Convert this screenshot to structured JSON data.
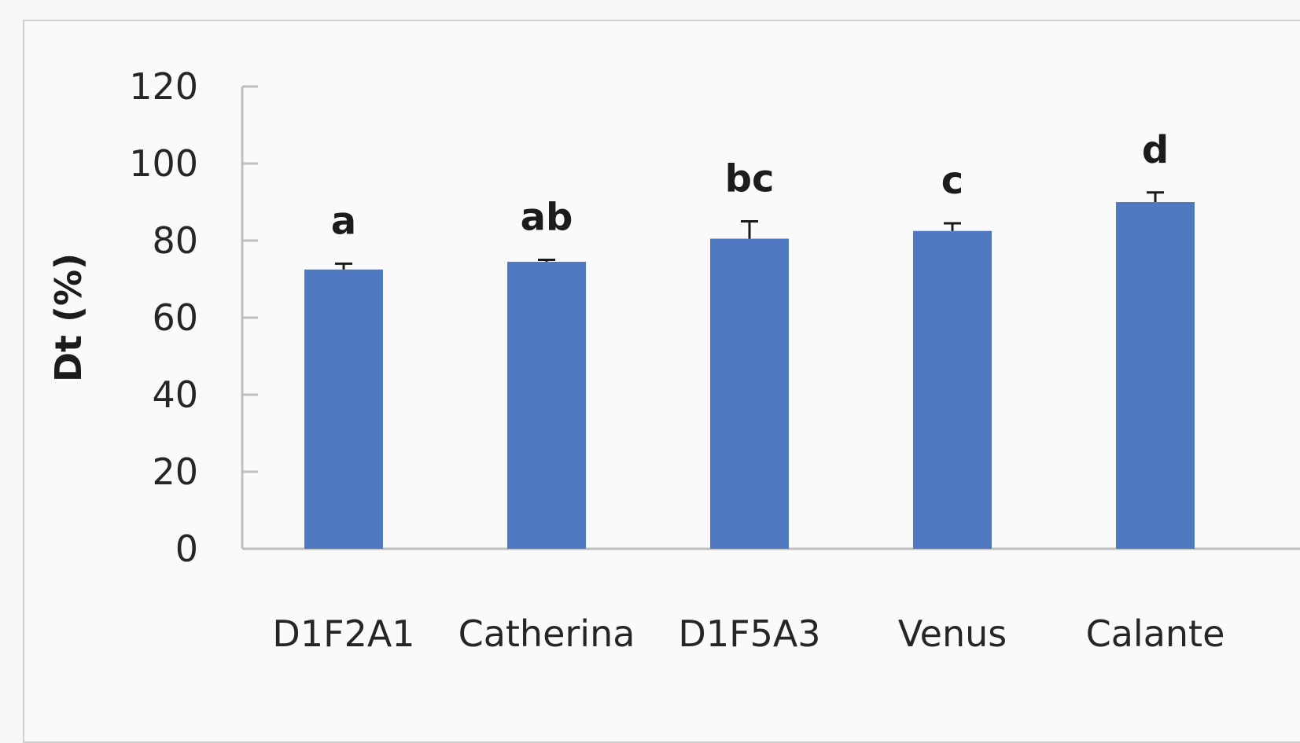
{
  "chart_data": {
    "type": "bar",
    "title": "",
    "xlabel": "",
    "ylabel": "Dt (%)",
    "ylim": [
      0,
      120
    ],
    "yticks": [
      0,
      20,
      40,
      60,
      80,
      100,
      120
    ],
    "categories": [
      "D1F2A1",
      "Catherina",
      "D1F5A3",
      "Venus",
      "Calante"
    ],
    "values": [
      72.5,
      74.5,
      80.5,
      82.5,
      90.0
    ],
    "errors": [
      1.5,
      0.5,
      4.5,
      2.0,
      2.5
    ],
    "significance": [
      "a",
      "ab",
      "bc",
      "c",
      "d"
    ],
    "grid": false,
    "legend": "none",
    "colors": {
      "bar": "#4f7ac1",
      "axis": "#bfbfbf",
      "error_bar": "#1a1a1a"
    }
  }
}
